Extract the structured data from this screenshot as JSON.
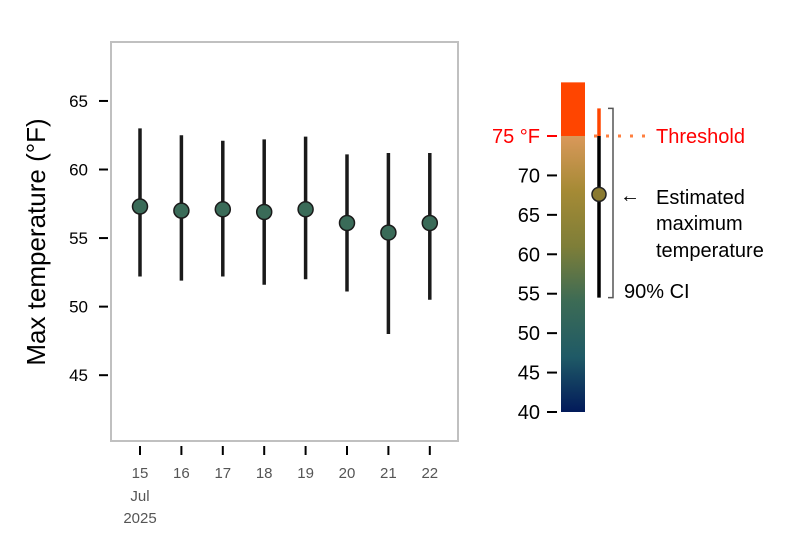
{
  "chart_data": [
    {
      "type": "scatter",
      "subtype": "point-range",
      "ylabel": "Max temperature (°F)",
      "xlabel": "",
      "categories": [
        "15",
        "16",
        "17",
        "18",
        "19",
        "20",
        "21",
        "22"
      ],
      "x_sublabels": [
        "Jul",
        "2025"
      ],
      "values": [
        57.3,
        57.0,
        57.1,
        56.9,
        57.1,
        56.1,
        55.4,
        56.1
      ],
      "ci_lower": [
        52.2,
        51.9,
        52.2,
        51.6,
        52.0,
        51.1,
        48.0,
        50.5
      ],
      "ci_upper": [
        63.0,
        62.5,
        62.1,
        62.2,
        62.4,
        61.1,
        61.2,
        61.2
      ],
      "yticks": [
        45,
        50,
        55,
        60,
        65
      ],
      "ylim": [
        40.2,
        69.3
      ],
      "grid": false,
      "colors": {
        "point_fill": "#3a6b58",
        "bar": "#1a1a1a",
        "frame": "#c0c0c0"
      }
    },
    {
      "type": "legend-key",
      "scale_ticks": [
        40,
        45,
        50,
        55,
        60,
        65,
        70
      ],
      "threshold_label": "75 °F",
      "threshold_value": 75,
      "threshold_text": "Threshold",
      "scale_max": 81.8,
      "example_estimate": 67.6,
      "example_ci": [
        54.5,
        78.5
      ],
      "estimate_label": [
        "Estimated",
        "maximum",
        "temperature"
      ],
      "ci_label": "90% CI",
      "colors": {
        "threshold": "#ff0000",
        "above": "#ff4500",
        "dotted": "#ff7f3f",
        "gradient": [
          "#021a5a",
          "#1f5a66",
          "#3c6b55",
          "#7e7e38",
          "#a58a35",
          "#d9985a"
        ],
        "legend_point": "#8a7a30"
      }
    }
  ]
}
